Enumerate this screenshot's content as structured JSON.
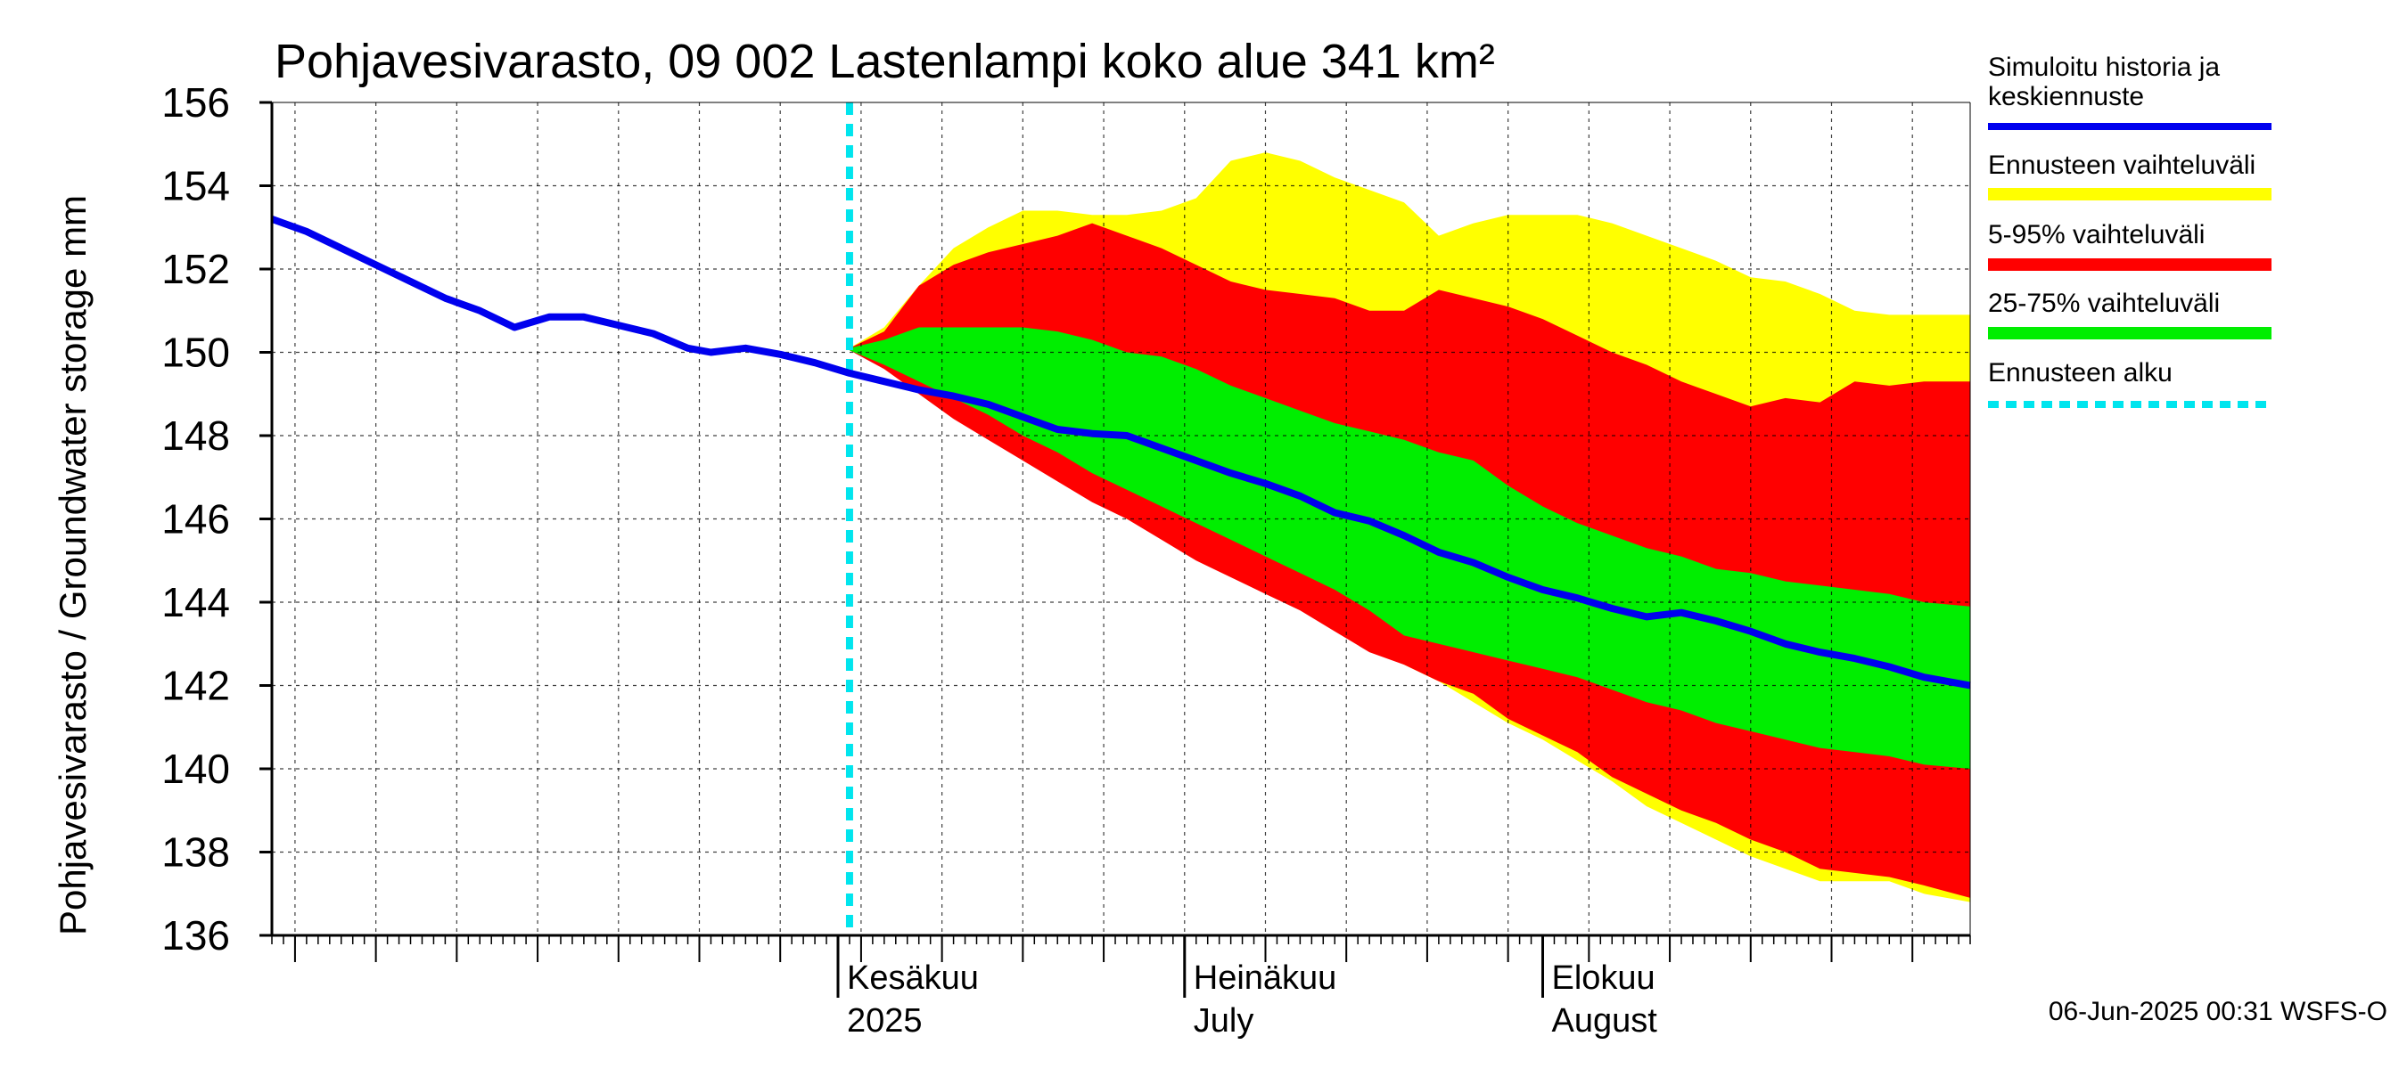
{
  "chart_data": {
    "type": "area",
    "title": "Pohjavesivarasto, 09 002 Lastenlampi koko alue 341 km²",
    "ylabel": "Pohjavesivarasto / Groundwater storage   mm",
    "ylim": [
      136,
      156
    ],
    "yticks": [
      "136",
      "138",
      "140",
      "142",
      "144",
      "146",
      "148",
      "150",
      "152",
      "154",
      "156"
    ],
    "xlim": [
      "2025-04-13",
      "2025-09-07"
    ],
    "x_month_labels": [
      {
        "date": "2025-06-01",
        "line1": "Kesäkuu",
        "line2": "2025"
      },
      {
        "date": "2025-07-01",
        "line1": "Heinäkuu",
        "line2": "July"
      },
      {
        "date": "2025-08-01",
        "line1": "Elokuu",
        "line2": "August"
      }
    ],
    "forecast_start": "2025-06-02",
    "grid": true,
    "legend_position": "right",
    "legend": [
      {
        "label": "Simuloitu historia ja keskiennuste",
        "color": "#0000ee"
      },
      {
        "label": "Ennusteen vaihteluväli",
        "color": "#ffff00"
      },
      {
        "label": "5-95% vaihteluväli",
        "color": "#ff0000"
      },
      {
        "label": "25-75% vaihteluväli",
        "color": "#00ee00"
      },
      {
        "label": "Ennusteen alku",
        "color": "#00e5ee"
      }
    ],
    "series": [
      {
        "name": "Simuloitu historia ja keskiennuste",
        "x": [
          "2025-04-13",
          "2025-04-16",
          "2025-04-19",
          "2025-04-22",
          "2025-04-25",
          "2025-04-28",
          "2025-05-01",
          "2025-05-04",
          "2025-05-07",
          "2025-05-10",
          "2025-05-13",
          "2025-05-16",
          "2025-05-19",
          "2025-05-21",
          "2025-05-24",
          "2025-05-27",
          "2025-05-30",
          "2025-06-02",
          "2025-06-05",
          "2025-06-08",
          "2025-06-11",
          "2025-06-14",
          "2025-06-17",
          "2025-06-20",
          "2025-06-23",
          "2025-06-26",
          "2025-06-29",
          "2025-07-02",
          "2025-07-05",
          "2025-07-08",
          "2025-07-11",
          "2025-07-14",
          "2025-07-17",
          "2025-07-20",
          "2025-07-23",
          "2025-07-26",
          "2025-07-29",
          "2025-08-01",
          "2025-08-04",
          "2025-08-07",
          "2025-08-10",
          "2025-08-13",
          "2025-08-16",
          "2025-08-19",
          "2025-08-22",
          "2025-08-25",
          "2025-08-28",
          "2025-08-31",
          "2025-09-03",
          "2025-09-07"
        ],
        "values": [
          153.2,
          152.9,
          152.5,
          152.1,
          151.7,
          151.3,
          151.0,
          150.6,
          150.85,
          150.85,
          150.65,
          150.45,
          150.1,
          150.0,
          150.1,
          149.95,
          149.75,
          149.5,
          149.3,
          149.1,
          148.95,
          148.75,
          148.45,
          148.15,
          148.05,
          148.0,
          147.7,
          147.4,
          147.1,
          146.85,
          146.55,
          146.15,
          145.95,
          145.6,
          145.2,
          144.95,
          144.6,
          144.3,
          144.1,
          143.85,
          143.65,
          143.75,
          143.55,
          143.3,
          143.0,
          142.8,
          142.65,
          142.45,
          142.2,
          142.0
        ]
      },
      {
        "name": "Ennusteen vaihteluväli",
        "band": "min-max",
        "x": [
          "2025-06-02",
          "2025-06-05",
          "2025-06-08",
          "2025-06-11",
          "2025-06-14",
          "2025-06-17",
          "2025-06-20",
          "2025-06-23",
          "2025-06-26",
          "2025-06-29",
          "2025-07-02",
          "2025-07-05",
          "2025-07-08",
          "2025-07-11",
          "2025-07-14",
          "2025-07-17",
          "2025-07-20",
          "2025-07-23",
          "2025-07-26",
          "2025-07-29",
          "2025-08-01",
          "2025-08-04",
          "2025-08-07",
          "2025-08-10",
          "2025-08-13",
          "2025-08-16",
          "2025-08-19",
          "2025-08-22",
          "2025-08-25",
          "2025-08-28",
          "2025-08-31",
          "2025-09-03",
          "2025-09-07"
        ],
        "upper": [
          150.1,
          150.6,
          151.6,
          152.5,
          153.0,
          153.4,
          153.4,
          153.3,
          153.3,
          153.4,
          153.7,
          154.6,
          154.8,
          154.6,
          154.2,
          153.9,
          153.6,
          152.8,
          153.1,
          153.3,
          153.3,
          153.3,
          153.1,
          152.8,
          152.5,
          152.2,
          151.8,
          151.7,
          151.4,
          151.0,
          150.9,
          150.9,
          150.9
        ],
        "lower": [
          150.05,
          149.7,
          149.2,
          148.7,
          148.2,
          147.7,
          147.1,
          146.5,
          146.0,
          145.6,
          145.1,
          144.7,
          144.3,
          143.9,
          143.4,
          142.9,
          142.5,
          142.1,
          141.6,
          141.1,
          140.7,
          140.2,
          139.7,
          139.1,
          138.7,
          138.3,
          137.9,
          137.6,
          137.3,
          137.3,
          137.3,
          137.0,
          136.8
        ]
      },
      {
        "name": "5-95% vaihteluväli",
        "band": "5-95",
        "x": [
          "2025-06-02",
          "2025-06-05",
          "2025-06-08",
          "2025-06-11",
          "2025-06-14",
          "2025-06-17",
          "2025-06-20",
          "2025-06-23",
          "2025-06-26",
          "2025-06-29",
          "2025-07-02",
          "2025-07-05",
          "2025-07-08",
          "2025-07-11",
          "2025-07-14",
          "2025-07-17",
          "2025-07-20",
          "2025-07-23",
          "2025-07-26",
          "2025-07-29",
          "2025-08-01",
          "2025-08-04",
          "2025-08-07",
          "2025-08-10",
          "2025-08-13",
          "2025-08-16",
          "2025-08-19",
          "2025-08-22",
          "2025-08-25",
          "2025-08-28",
          "2025-08-31",
          "2025-09-03",
          "2025-09-07"
        ],
        "upper": [
          150.1,
          150.5,
          151.6,
          152.1,
          152.4,
          152.6,
          152.8,
          153.1,
          152.8,
          152.5,
          152.1,
          151.7,
          151.5,
          151.4,
          151.3,
          151.0,
          151.0,
          151.5,
          151.3,
          151.1,
          150.8,
          150.4,
          150.0,
          149.7,
          149.3,
          149.0,
          148.7,
          148.9,
          148.8,
          149.3,
          149.2,
          149.3,
          149.3
        ],
        "lower": [
          150.05,
          149.6,
          149.0,
          148.4,
          147.9,
          147.4,
          146.9,
          146.4,
          146.0,
          145.5,
          145.0,
          144.6,
          144.2,
          143.8,
          143.3,
          142.8,
          142.5,
          142.1,
          141.8,
          141.2,
          140.8,
          140.4,
          139.8,
          139.4,
          139.0,
          138.7,
          138.3,
          138.0,
          137.6,
          137.5,
          137.4,
          137.2,
          136.9
        ]
      },
      {
        "name": "25-75% vaihteluväli",
        "band": "25-75",
        "x": [
          "2025-06-02",
          "2025-06-05",
          "2025-06-08",
          "2025-06-11",
          "2025-06-14",
          "2025-06-17",
          "2025-06-20",
          "2025-06-23",
          "2025-06-26",
          "2025-06-29",
          "2025-07-02",
          "2025-07-05",
          "2025-07-08",
          "2025-07-11",
          "2025-07-14",
          "2025-07-17",
          "2025-07-20",
          "2025-07-23",
          "2025-07-26",
          "2025-07-29",
          "2025-08-01",
          "2025-08-04",
          "2025-08-07",
          "2025-08-10",
          "2025-08-13",
          "2025-08-16",
          "2025-08-19",
          "2025-08-22",
          "2025-08-25",
          "2025-08-28",
          "2025-08-31",
          "2025-09-03",
          "2025-09-07"
        ],
        "upper": [
          150.1,
          150.3,
          150.6,
          150.6,
          150.6,
          150.6,
          150.5,
          150.3,
          150.0,
          149.9,
          149.6,
          149.2,
          148.9,
          148.6,
          148.3,
          148.1,
          147.9,
          147.6,
          147.4,
          146.8,
          146.3,
          145.9,
          145.6,
          145.3,
          145.1,
          144.8,
          144.7,
          144.5,
          144.4,
          144.3,
          144.2,
          144.0,
          143.9
        ],
        "lower": [
          150.05,
          149.7,
          149.3,
          148.9,
          148.5,
          148.0,
          147.6,
          147.1,
          146.7,
          146.3,
          145.9,
          145.5,
          145.1,
          144.7,
          144.3,
          143.8,
          143.2,
          143.0,
          142.8,
          142.6,
          142.4,
          142.2,
          141.9,
          141.6,
          141.4,
          141.1,
          140.9,
          140.7,
          140.5,
          140.4,
          140.3,
          140.1,
          140.0
        ]
      }
    ]
  },
  "footer": {
    "timestamp": "06-Jun-2025 00:31 WSFS-O"
  }
}
